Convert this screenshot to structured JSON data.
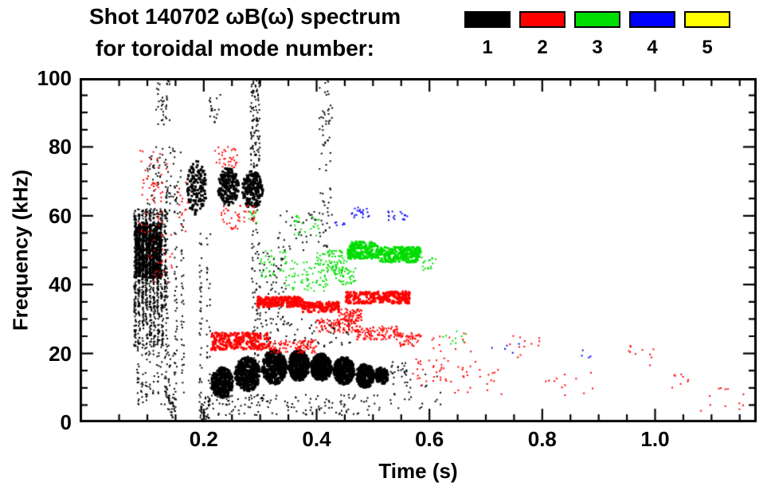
{
  "header": {
    "title": "Shot 140702 ωB(ω) spectrum",
    "subtitle": "for toroidal mode number:"
  },
  "legend": {
    "position": "top",
    "modes": [
      {
        "label": "1",
        "color": "#000000"
      },
      {
        "label": "2",
        "color": "#ff0000"
      },
      {
        "label": "3",
        "color": "#00dd00"
      },
      {
        "label": "4",
        "color": "#0000ff"
      },
      {
        "label": "5",
        "color": "#ffff00"
      }
    ]
  },
  "chart_data": {
    "type": "scatter",
    "title": "Shot 140702 ωB(ω) spectrum for toroidal mode numbers 1-5",
    "xlabel": "Time (s)",
    "ylabel": "Frequency (kHz)",
    "xlim": [
      -0.02,
      1.18
    ],
    "ylim": [
      0,
      100
    ],
    "x_ticks": [
      0.2,
      0.4,
      0.6,
      0.8,
      1.0
    ],
    "x_tick_labels": [
      "0.2",
      "0.4",
      "0.6",
      "0.8",
      "1.0"
    ],
    "y_ticks": [
      0,
      20,
      40,
      60,
      80,
      100
    ],
    "y_tick_labels": [
      "0",
      "20",
      "40",
      "60",
      "80",
      "100"
    ],
    "x_minor_step": 0.05,
    "y_minor_step": 5,
    "grid": false,
    "units": {
      "t": "s",
      "f": "kHz"
    },
    "series": [
      {
        "name": "n=1",
        "mode": 1,
        "color": "#000000",
        "clusters": [
          {
            "t": [
              0.075,
              0.135
            ],
            "f": [
              33,
              62
            ],
            "n": 850,
            "size": 2,
            "cols": 9
          },
          {
            "t": [
              0.078,
              0.125
            ],
            "f": [
              42,
              58
            ],
            "n": 550,
            "size": 3,
            "cols": 8
          },
          {
            "t": [
              0.075,
              0.13
            ],
            "f": [
              22,
              34
            ],
            "n": 220,
            "size": 2,
            "cols": 8
          },
          {
            "t": [
              0.08,
              0.15
            ],
            "f": [
              5,
              23
            ],
            "n": 110,
            "size": 2,
            "cols": 10
          },
          {
            "t": [
              0.1,
              0.16
            ],
            "f": [
              60,
              80
            ],
            "n": 70,
            "size": 2
          },
          {
            "t": [
              0.115,
              0.14
            ],
            "f": [
              86,
              100
            ],
            "n": 35,
            "size": 2
          },
          {
            "t": [
              0.132,
              0.137
            ],
            "f": [
              5,
              75
            ],
            "n": 55,
            "size": 2
          },
          {
            "t": [
              0.148,
              0.153
            ],
            "f": [
              5,
              70
            ],
            "n": 45,
            "size": 2
          },
          {
            "t": [
              0.16,
              0.165
            ],
            "f": [
              8,
              60
            ],
            "n": 35,
            "size": 2
          },
          {
            "t": [
              0.135,
              0.15
            ],
            "f": [
              1,
              8
            ],
            "n": 25,
            "size": 2
          },
          {
            "t": [
              0.17,
              0.205
            ],
            "f": [
              60,
              76
            ],
            "n": 150,
            "size": 3,
            "shape": "ellipse"
          },
          {
            "t": [
              0.192,
              0.197
            ],
            "f": [
              0,
              58
            ],
            "n": 45,
            "size": 2
          },
          {
            "t": [
              0.205,
              0.212
            ],
            "f": [
              5,
              55
            ],
            "n": 30,
            "size": 2
          },
          {
            "t": [
              0.195,
              0.21
            ],
            "f": [
              0,
              8
            ],
            "n": 30,
            "size": 2
          },
          {
            "t": [
              0.225,
              0.262
            ],
            "f": [
              63,
              74
            ],
            "n": 190,
            "size": 3,
            "shape": "ellipse"
          },
          {
            "t": [
              0.268,
              0.305
            ],
            "f": [
              62,
              73
            ],
            "n": 200,
            "size": 3,
            "shape": "ellipse"
          },
          {
            "t": [
              0.21,
              0.23
            ],
            "f": [
              86,
              96
            ],
            "n": 18,
            "size": 2
          },
          {
            "t": [
              0.283,
              0.3
            ],
            "f": [
              74,
              100
            ],
            "n": 110,
            "size": 2
          },
          {
            "t": [
              0.285,
              0.3
            ],
            "f": [
              12,
              62
            ],
            "n": 70,
            "size": 2
          },
          {
            "t": [
              0.213,
              0.252
            ],
            "f": [
              7,
              16
            ],
            "n": 330,
            "size": 3,
            "shape": "ellipse"
          },
          {
            "t": [
              0.255,
              0.3
            ],
            "f": [
              9,
              19
            ],
            "n": 430,
            "size": 3,
            "shape": "ellipse"
          },
          {
            "t": [
              0.303,
              0.347
            ],
            "f": [
              11,
              21
            ],
            "n": 430,
            "size": 3,
            "shape": "ellipse"
          },
          {
            "t": [
              0.35,
              0.387
            ],
            "f": [
              12,
              21
            ],
            "n": 400,
            "size": 3,
            "shape": "ellipse"
          },
          {
            "t": [
              0.39,
              0.427
            ],
            "f": [
              12,
              20
            ],
            "n": 400,
            "size": 3,
            "shape": "ellipse"
          },
          {
            "t": [
              0.43,
              0.467
            ],
            "f": [
              11,
              19
            ],
            "n": 360,
            "size": 3,
            "shape": "ellipse"
          },
          {
            "t": [
              0.47,
              0.502
            ],
            "f": [
              10,
              17
            ],
            "n": 280,
            "size": 3,
            "shape": "ellipse"
          },
          {
            "t": [
              0.503,
              0.527
            ],
            "f": [
              11,
              16
            ],
            "n": 140,
            "size": 3,
            "shape": "ellipse"
          },
          {
            "t": [
              0.21,
              0.52
            ],
            "f": [
              2,
              8
            ],
            "n": 140,
            "size": 2
          },
          {
            "t": [
              0.3,
              0.46
            ],
            "f": [
              21,
              30
            ],
            "n": 80,
            "size": 2
          },
          {
            "t": [
              0.295,
              0.35
            ],
            "f": [
              30,
              50
            ],
            "n": 55,
            "size": 2
          },
          {
            "t": [
              0.33,
              0.42
            ],
            "f": [
              50,
              62
            ],
            "n": 45,
            "size": 2
          },
          {
            "t": [
              0.405,
              0.428
            ],
            "f": [
              55,
              100
            ],
            "n": 60,
            "size": 2
          },
          {
            "t": [
              0.53,
              0.62
            ],
            "f": [
              4,
              14
            ],
            "n": 30,
            "size": 2
          },
          {
            "t": [
              0.53,
              0.56
            ],
            "f": [
              14,
              18
            ],
            "n": 20,
            "size": 2
          }
        ]
      },
      {
        "name": "n=2",
        "mode": 2,
        "color": "#ff0000",
        "clusters": [
          {
            "t": [
              0.085,
              0.135
            ],
            "f": [
              55,
              80
            ],
            "n": 55,
            "size": 2
          },
          {
            "t": [
              0.1,
              0.145
            ],
            "f": [
              40,
              55
            ],
            "n": 25,
            "size": 2
          },
          {
            "t": [
              0.155,
              0.175
            ],
            "f": [
              55,
              70
            ],
            "n": 15,
            "size": 2
          },
          {
            "t": [
              0.22,
              0.262
            ],
            "f": [
              74,
              80
            ],
            "n": 35,
            "size": 2
          },
          {
            "t": [
              0.228,
              0.29
            ],
            "f": [
              56,
              63
            ],
            "n": 45,
            "size": 2
          },
          {
            "t": [
              0.213,
              0.32
            ],
            "f": [
              21,
              26
            ],
            "n": 240,
            "size": 3
          },
          {
            "t": [
              0.32,
              0.4
            ],
            "f": [
              20,
              24
            ],
            "n": 110,
            "size": 2
          },
          {
            "t": [
              0.295,
              0.375
            ],
            "f": [
              33.5,
              36.5
            ],
            "n": 210,
            "size": 3
          },
          {
            "t": [
              0.375,
              0.44
            ],
            "f": [
              32,
              35
            ],
            "n": 150,
            "size": 3
          },
          {
            "t": [
              0.44,
              0.48
            ],
            "f": [
              29,
              33
            ],
            "n": 80,
            "size": 2
          },
          {
            "t": [
              0.452,
              0.565
            ],
            "f": [
              34.5,
              38
            ],
            "n": 250,
            "size": 3
          },
          {
            "t": [
              0.4,
              0.47
            ],
            "f": [
              26,
              30
            ],
            "n": 100,
            "size": 2
          },
          {
            "t": [
              0.47,
              0.545
            ],
            "f": [
              24,
              28
            ],
            "n": 120,
            "size": 2
          },
          {
            "t": [
              0.545,
              0.585
            ],
            "f": [
              22,
              26
            ],
            "n": 55,
            "size": 2
          },
          {
            "t": [
              0.57,
              0.63
            ],
            "f": [
              10,
              20
            ],
            "n": 30,
            "size": 2
          },
          {
            "t": [
              0.63,
              0.73
            ],
            "f": [
              7,
              18
            ],
            "n": 26,
            "size": 2
          },
          {
            "t": [
              0.74,
              0.8
            ],
            "f": [
              18,
              26
            ],
            "n": 12,
            "size": 2
          },
          {
            "t": [
              0.8,
              0.9
            ],
            "f": [
              7,
              15
            ],
            "n": 12,
            "size": 2
          },
          {
            "t": [
              0.92,
              1.0
            ],
            "f": [
              16,
              23
            ],
            "n": 10,
            "size": 2
          },
          {
            "t": [
              1.0,
              1.07
            ],
            "f": [
              8,
              14
            ],
            "n": 8,
            "size": 2
          },
          {
            "t": [
              1.08,
              1.16
            ],
            "f": [
              3,
              10
            ],
            "n": 12,
            "size": 2
          },
          {
            "t": [
              0.6,
              0.7
            ],
            "f": [
              20,
              26
            ],
            "n": 12,
            "size": 2
          }
        ]
      },
      {
        "name": "n=3",
        "mode": 3,
        "color": "#00dd00",
        "clusters": [
          {
            "t": [
              0.455,
              0.51
            ],
            "f": [
              47.5,
              52.5
            ],
            "n": 190,
            "size": 3
          },
          {
            "t": [
              0.51,
              0.585
            ],
            "f": [
              46.5,
              51
            ],
            "n": 230,
            "size": 3
          },
          {
            "t": [
              0.4,
              0.455
            ],
            "f": [
              43,
              50
            ],
            "n": 90,
            "size": 2
          },
          {
            "t": [
              0.345,
              0.42
            ],
            "f": [
              38,
              47
            ],
            "n": 70,
            "size": 2
          },
          {
            "t": [
              0.3,
              0.345
            ],
            "f": [
              42,
              50
            ],
            "n": 35,
            "size": 2
          },
          {
            "t": [
              0.36,
              0.405
            ],
            "f": [
              54,
              60
            ],
            "n": 25,
            "size": 2
          },
          {
            "t": [
              0.43,
              0.47
            ],
            "f": [
              40,
              45
            ],
            "n": 40,
            "size": 2
          },
          {
            "t": [
              0.585,
              0.615
            ],
            "f": [
              44,
              48
            ],
            "n": 18,
            "size": 2
          },
          {
            "t": [
              0.62,
              0.67
            ],
            "f": [
              22,
              27
            ],
            "n": 10,
            "size": 2
          },
          {
            "t": [
              0.28,
              0.3
            ],
            "f": [
              57,
              62
            ],
            "n": 8,
            "size": 2
          }
        ]
      },
      {
        "name": "n=4",
        "mode": 4,
        "color": "#0000ff",
        "clusters": [
          {
            "t": [
              0.462,
              0.497
            ],
            "f": [
              59.5,
              62.5
            ],
            "n": 20,
            "size": 2
          },
          {
            "t": [
              0.525,
              0.562
            ],
            "f": [
              58.5,
              61.5
            ],
            "n": 18,
            "size": 2
          },
          {
            "t": [
              0.43,
              0.45
            ],
            "f": [
              57,
              59
            ],
            "n": 6,
            "size": 2
          },
          {
            "t": [
              0.7,
              0.76
            ],
            "f": [
              20,
              24
            ],
            "n": 5,
            "size": 2
          },
          {
            "t": [
              0.87,
              0.91
            ],
            "f": [
              17,
              21
            ],
            "n": 4,
            "size": 2
          }
        ]
      },
      {
        "name": "n=5",
        "mode": 5,
        "color": "#ffff00",
        "clusters": []
      }
    ]
  }
}
